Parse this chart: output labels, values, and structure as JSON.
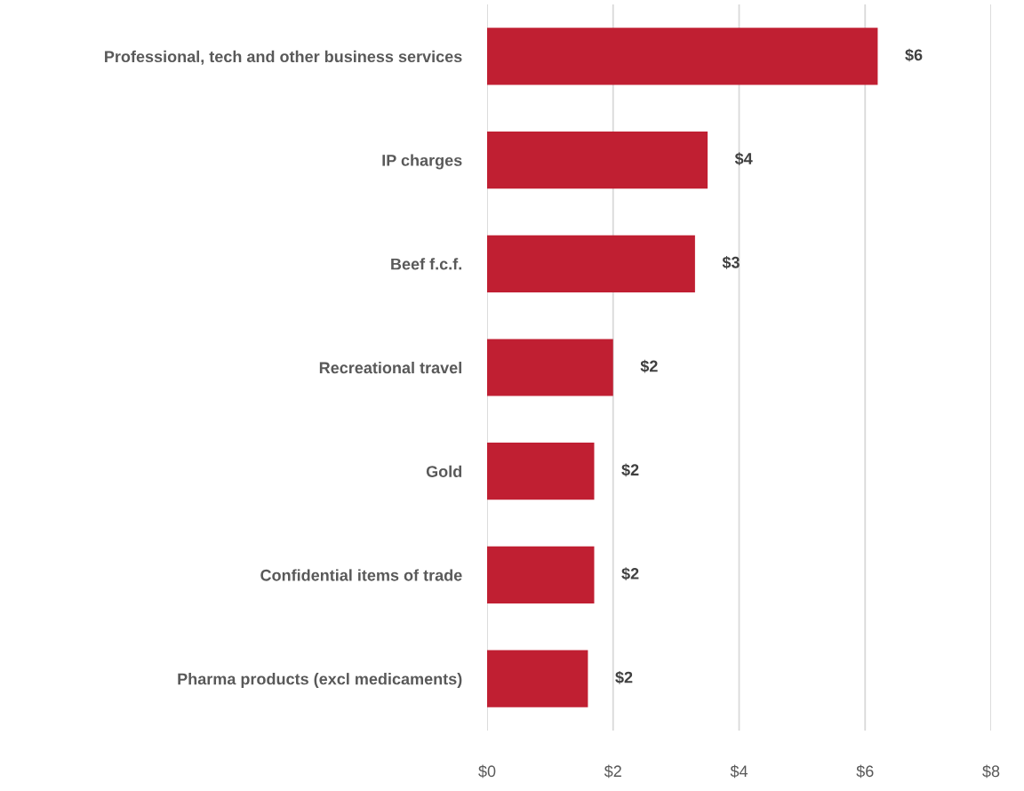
{
  "chart_data": {
    "type": "bar",
    "orientation": "horizontal",
    "categories": [
      "Professional, tech and other business services",
      "IP charges",
      "Beef f.c.f.",
      "Recreational travel",
      "Gold",
      "Confidential items of trade",
      "Pharma products (excl medicaments)"
    ],
    "values": [
      6.2,
      3.5,
      3.3,
      2.0,
      1.7,
      1.7,
      1.6
    ],
    "value_labels": [
      "$6",
      "$4",
      "$3",
      "$2",
      "$2",
      "$2",
      "$2"
    ],
    "color": "#c01f32",
    "xlim": [
      0,
      8
    ],
    "xticks": [
      {
        "value": 0,
        "label": "$0"
      },
      {
        "value": 2,
        "label": "$2"
      },
      {
        "value": 4,
        "label": "$4"
      },
      {
        "value": 6,
        "label": "$6"
      },
      {
        "value": 8,
        "label": "$8"
      }
    ],
    "grid": "x"
  }
}
